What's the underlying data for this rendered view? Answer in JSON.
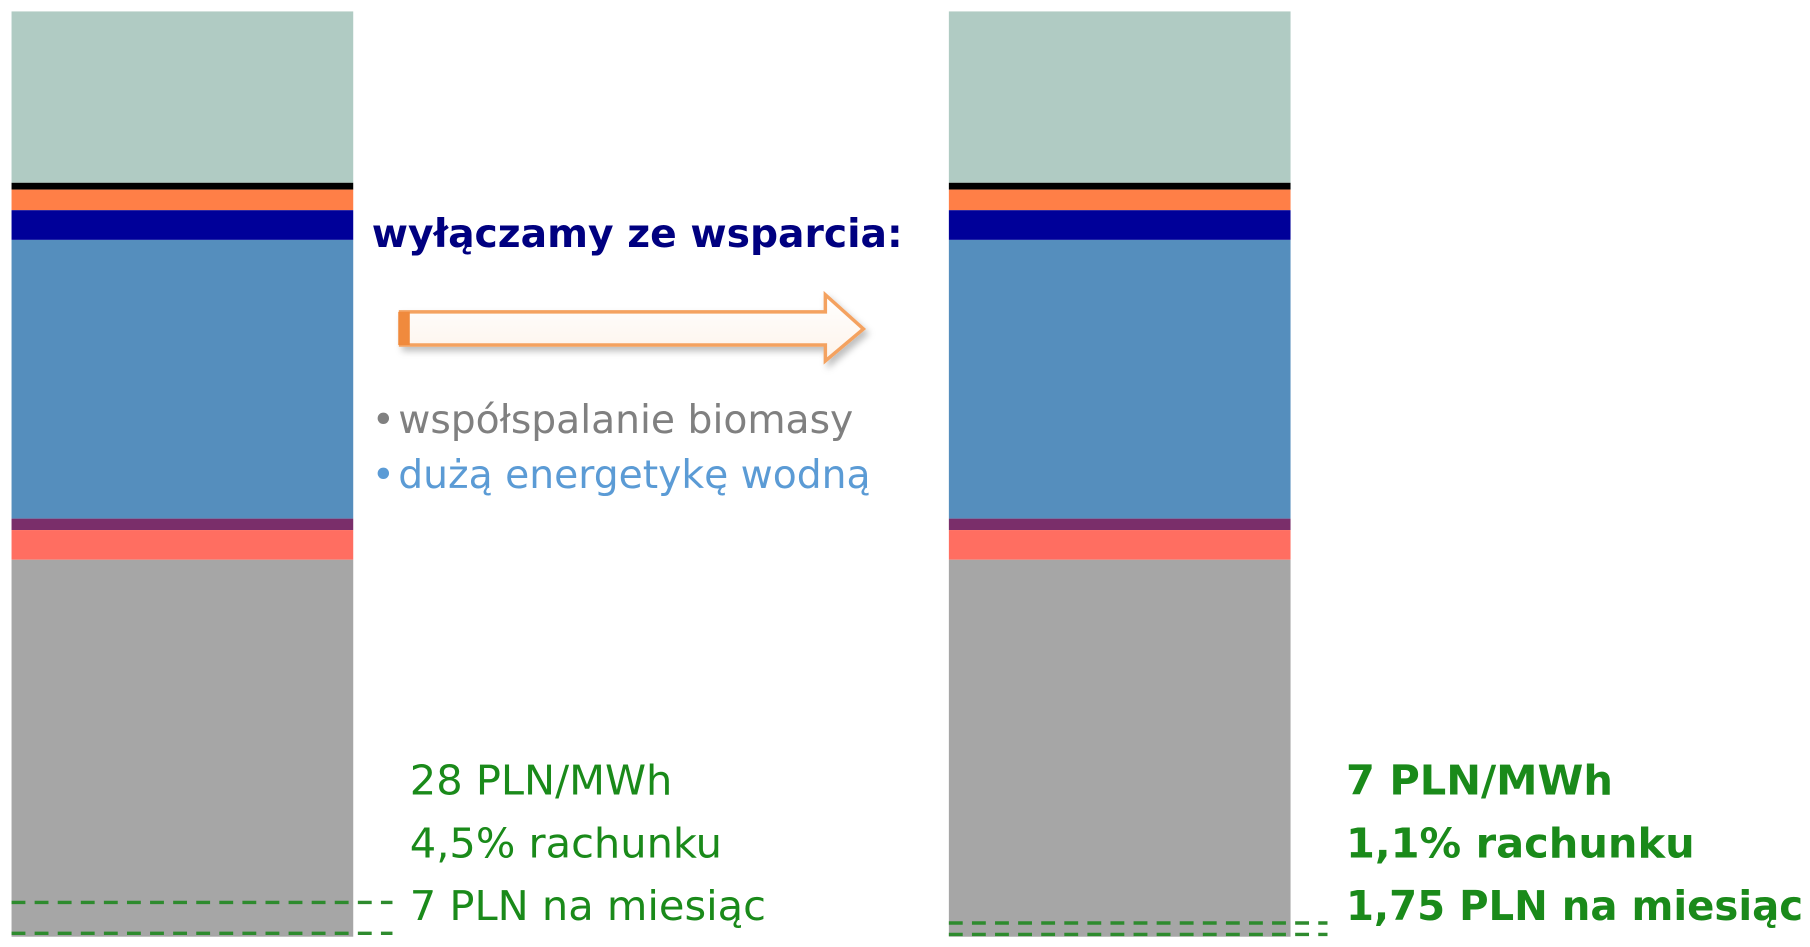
{
  "heading": "wyłączamy ze wsparcia:",
  "bullets": [
    "współspalanie biomasy",
    "dużą energetykę wodną"
  ],
  "before": [
    "28 PLN/MWh",
    "4,5% rachunku",
    "7 PLN na miesiąc"
  ],
  "after": [
    "7 PLN/MWh",
    "1,1% rachunku",
    "1,75 PLN na miesiąc"
  ]
}
